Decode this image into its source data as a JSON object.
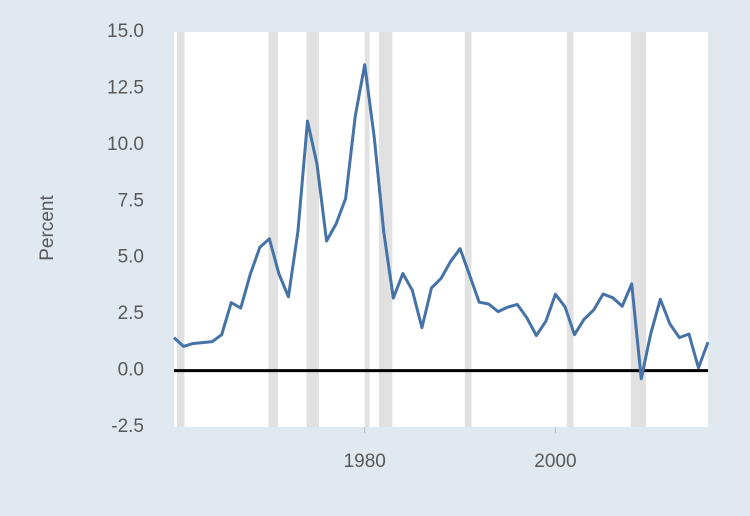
{
  "chart_data": {
    "type": "line",
    "y_label": "Percent",
    "x": [
      1960,
      1961,
      1962,
      1963,
      1964,
      1965,
      1966,
      1967,
      1968,
      1969,
      1970,
      1971,
      1972,
      1973,
      1974,
      1975,
      1976,
      1977,
      1978,
      1979,
      1980,
      1981,
      1982,
      1983,
      1984,
      1985,
      1986,
      1987,
      1988,
      1989,
      1990,
      1991,
      1992,
      1993,
      1994,
      1995,
      1996,
      1997,
      1998,
      1999,
      2000,
      2001,
      2002,
      2003,
      2004,
      2005,
      2006,
      2007,
      2008,
      2009,
      2010,
      2011,
      2012,
      2013,
      2014,
      2015,
      2016
    ],
    "series": [
      {
        "color": "#4572a7",
        "values": [
          1.46,
          1.07,
          1.2,
          1.24,
          1.28,
          1.59,
          3.01,
          2.77,
          4.27,
          5.46,
          5.84,
          4.29,
          3.27,
          6.18,
          11.05,
          9.14,
          5.74,
          6.5,
          7.63,
          11.25,
          13.55,
          10.33,
          6.13,
          3.21,
          4.3,
          3.55,
          1.9,
          3.66,
          4.08,
          4.83,
          5.4,
          4.23,
          3.03,
          2.95,
          2.61,
          2.81,
          2.93,
          2.34,
          1.55,
          2.19,
          3.38,
          2.83,
          1.59,
          2.27,
          2.68,
          3.39,
          3.23,
          2.85,
          3.84,
          -0.36,
          1.64,
          3.16,
          2.07,
          1.46,
          1.62,
          0.12,
          1.26
        ]
      }
    ],
    "recessions": [
      [
        1960.3,
        1961.1
      ],
      [
        1969.9,
        1970.9
      ],
      [
        1973.9,
        1975.2
      ],
      [
        1980.0,
        1980.5
      ],
      [
        1981.5,
        1982.9
      ],
      [
        1990.5,
        1991.2
      ],
      [
        2001.2,
        2001.9
      ],
      [
        2007.9,
        2009.5
      ]
    ],
    "recession_color": "#e1e1e1",
    "xlim": [
      1960,
      2016
    ],
    "xticks": [
      1980,
      2000
    ],
    "ylim": [
      -2.5,
      15
    ],
    "yticks": [
      -2.5,
      {
        "value": 0,
        "label": "0.0"
      },
      2.5,
      {
        "value": 5,
        "label": "5.0"
      },
      7.5,
      {
        "value": 10,
        "label": "10.0"
      },
      12.5,
      {
        "value": 15,
        "label": "15.0"
      }
    ],
    "zero_line": true,
    "grid": false
  }
}
